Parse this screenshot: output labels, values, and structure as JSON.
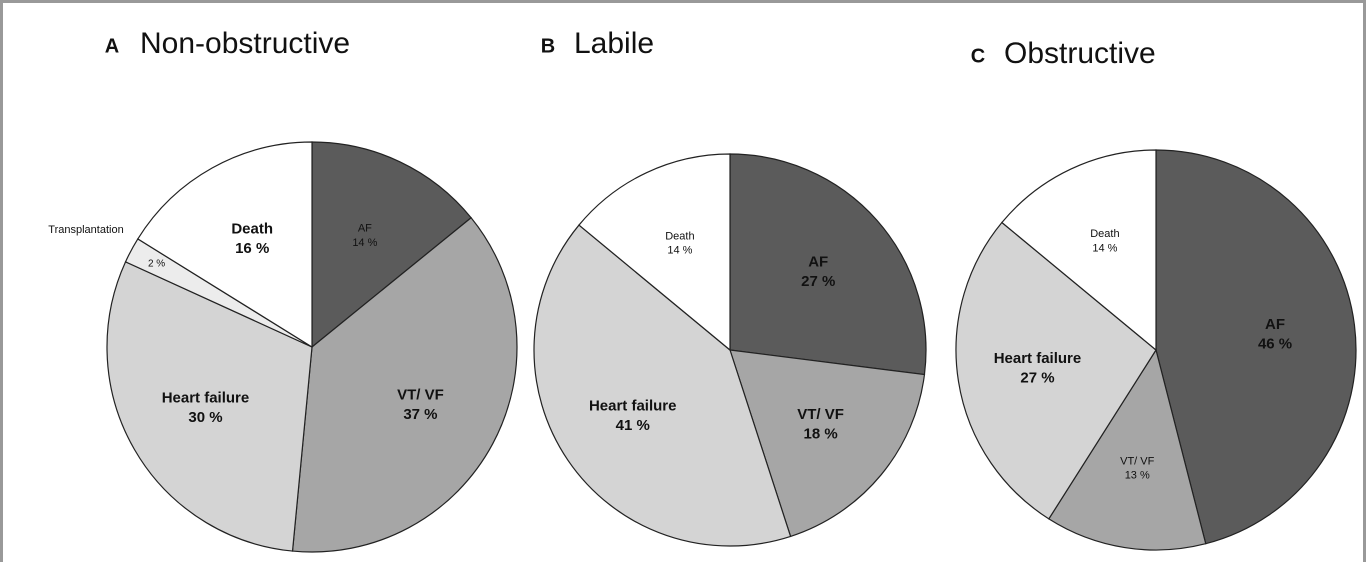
{
  "chart_data": [
    {
      "type": "pie",
      "panel": "A",
      "title": "Non-obstructive",
      "categories": [
        "AF",
        "VT/ VF",
        "Heart failure",
        "Transplantation",
        "Death"
      ],
      "values": [
        14,
        37,
        30,
        2,
        16
      ],
      "value_labels": [
        "14 %",
        "37 %",
        "30 %",
        "2 %",
        "16 %"
      ],
      "colors": [
        "#5b5b5b",
        "#a6a6a6",
        "#d4d4d4",
        "#ececec",
        "#ffffff"
      ]
    },
    {
      "type": "pie",
      "panel": "B",
      "title": "Labile",
      "categories": [
        "AF",
        "VT/ VF",
        "Heart failure",
        "Death"
      ],
      "values": [
        27,
        18,
        41,
        14
      ],
      "value_labels": [
        "27 %",
        "18 %",
        "41 %",
        "14 %"
      ],
      "colors": [
        "#5b5b5b",
        "#a6a6a6",
        "#d4d4d4",
        "#ffffff"
      ]
    },
    {
      "type": "pie",
      "panel": "C",
      "title": "Obstructive",
      "categories": [
        "AF",
        "VT/ VF",
        "Heart failure",
        "Death"
      ],
      "values": [
        46,
        13,
        27,
        14
      ],
      "value_labels": [
        "46 %",
        "13 %",
        "27 %",
        "14 %"
      ],
      "colors": [
        "#5b5b5b",
        "#a6a6a6",
        "#d4d4d4",
        "#ffffff"
      ]
    }
  ]
}
